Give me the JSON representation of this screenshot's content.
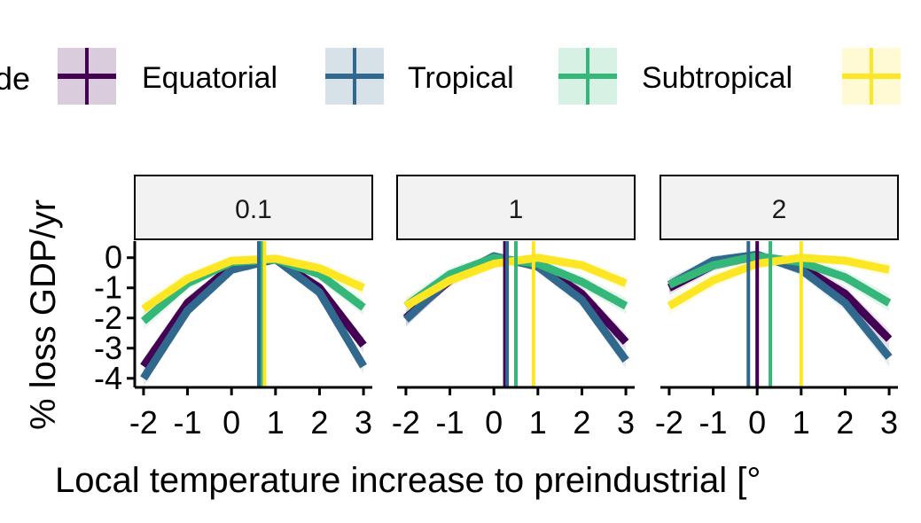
{
  "legend": {
    "title": "de",
    "items": [
      {
        "label": "Equatorial",
        "color": "#440154"
      },
      {
        "label": "Tropical",
        "color": "#31688E"
      },
      {
        "label": "Subtropical",
        "color": "#35B779"
      },
      {
        "label": "",
        "color": "#FDE725"
      }
    ]
  },
  "chart_data": {
    "type": "line",
    "xlabel": "Local temperature increase to preindustrial [°",
    "ylabel": "% loss GDP/yr",
    "xlim": [
      -2.2,
      3.2
    ],
    "ylim": [
      -4.3,
      0.55
    ],
    "x_ticks": [
      -2,
      -1,
      0,
      1,
      2,
      3
    ],
    "x_tick_labels": [
      "-2",
      "-1",
      "0",
      "1",
      "2",
      "3"
    ],
    "y_ticks": [
      0,
      -1,
      -2,
      -3,
      -4
    ],
    "y_tick_labels": [
      "0",
      "-1",
      "-2",
      "-3",
      "-4"
    ],
    "grid": false,
    "legend_position": "top",
    "panels": [
      {
        "label": "0.1",
        "series": [
          {
            "name": "Equatorial",
            "color": "#440154",
            "peak_x": 0.65,
            "x": [
              -2,
              -1,
              0,
              1,
              2,
              3
            ],
            "y": [
              -3.6,
              -1.5,
              -0.3,
              -0.05,
              -1.0,
              -2.9
            ]
          },
          {
            "name": "Tropical",
            "color": "#31688E",
            "peak_x": 0.62,
            "x": [
              -2,
              -1,
              0,
              1,
              2,
              3
            ],
            "y": [
              -4.0,
              -1.75,
              -0.4,
              -0.05,
              -1.15,
              -3.6
            ]
          },
          {
            "name": "Subtropical",
            "color": "#35B779",
            "peak_x": 0.7,
            "x": [
              -2,
              -1,
              0,
              1,
              2,
              3
            ],
            "y": [
              -2.1,
              -0.85,
              -0.15,
              -0.05,
              -0.55,
              -1.65
            ]
          },
          {
            "name": "",
            "color": "#FDE725",
            "peak_x": 0.75,
            "x": [
              -2,
              -1,
              0,
              1,
              2,
              3
            ],
            "y": [
              -1.7,
              -0.7,
              -0.1,
              -0.03,
              -0.35,
              -1.0
            ]
          }
        ]
      },
      {
        "label": "1",
        "series": [
          {
            "name": "Equatorial",
            "color": "#440154",
            "peak_x": 0.25,
            "x": [
              -2,
              -1,
              0,
              1,
              2,
              3
            ],
            "y": [
              -2.0,
              -0.75,
              -0.05,
              -0.2,
              -1.2,
              -2.8
            ]
          },
          {
            "name": "Tropical",
            "color": "#31688E",
            "peak_x": 0.3,
            "x": [
              -2,
              -1,
              0,
              1,
              2,
              3
            ],
            "y": [
              -2.05,
              -0.7,
              0.05,
              -0.3,
              -1.4,
              -3.4
            ]
          },
          {
            "name": "Subtropical",
            "color": "#35B779",
            "peak_x": 0.5,
            "x": [
              -2,
              -1,
              0,
              1,
              2,
              3
            ],
            "y": [
              -1.6,
              -0.55,
              0.0,
              -0.2,
              -0.8,
              -1.6
            ]
          },
          {
            "name": "",
            "color": "#FDE725",
            "peak_x": 0.9,
            "x": [
              -2,
              -1,
              0,
              1,
              2,
              3
            ],
            "y": [
              -1.6,
              -0.75,
              -0.2,
              0.0,
              -0.25,
              -0.85
            ]
          }
        ]
      },
      {
        "label": "2",
        "series": [
          {
            "name": "Equatorial",
            "color": "#440154",
            "peak_x": 0.0,
            "x": [
              -2,
              -1,
              0,
              1,
              2,
              3
            ],
            "y": [
              -1.0,
              -0.25,
              0.05,
              -0.3,
              -1.2,
              -2.7
            ]
          },
          {
            "name": "Tropical",
            "color": "#31688E",
            "peak_x": -0.2,
            "x": [
              -2,
              -1,
              0,
              1,
              2,
              3
            ],
            "y": [
              -0.9,
              -0.1,
              0.1,
              -0.4,
              -1.5,
              -3.3
            ]
          },
          {
            "name": "Subtropical",
            "color": "#35B779",
            "peak_x": 0.3,
            "x": [
              -2,
              -1,
              0,
              1,
              2,
              3
            ],
            "y": [
              -0.9,
              -0.25,
              0.05,
              -0.15,
              -0.65,
              -1.5
            ]
          },
          {
            "name": "",
            "color": "#FDE725",
            "peak_x": 1.0,
            "x": [
              -2,
              -1,
              0,
              1,
              2,
              3
            ],
            "y": [
              -1.6,
              -0.75,
              -0.2,
              0.0,
              -0.1,
              -0.4
            ]
          }
        ]
      }
    ]
  }
}
